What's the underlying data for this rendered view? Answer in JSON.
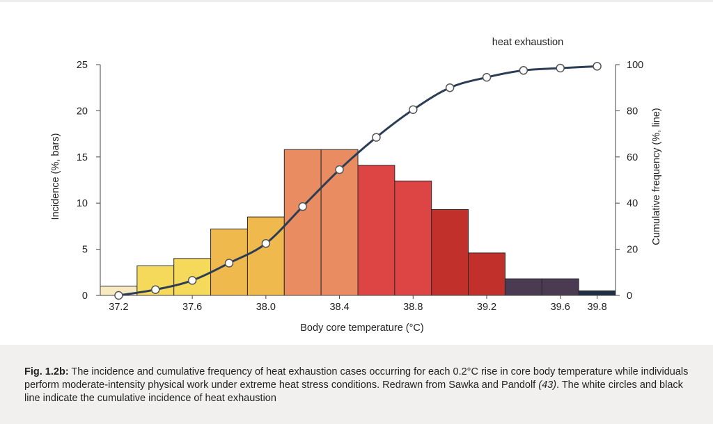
{
  "annotation": "heat exhaustion",
  "caption": {
    "fig_label": "Fig. 1.2b:",
    "text_1": " The incidence and cumulative frequency of heat exhaustion cases occurring for each 0.2°C rise in core body temperature while individuals perform moderate-intensity physical work under extreme heat stress conditions. Redrawn from Sawka and Pandolf ",
    "ref": "(43)",
    "text_2": ". The white circles and black line indicate the cumulative incidence of heat exhaustion"
  },
  "chart_data": {
    "type": "bar",
    "title": "",
    "xlabel": "Body core temperature (°C)",
    "ylabel": "Incidence (%, bars)",
    "y2label": "Cumulative frequency (%, line)",
    "xlim": [
      37.1,
      39.9
    ],
    "ylim": [
      0,
      25
    ],
    "y2lim": [
      0,
      100
    ],
    "x_ticks": [
      37.2,
      37.6,
      38.0,
      38.4,
      38.8,
      39.2,
      39.6,
      39.8
    ],
    "x_tick_labels": [
      "37.2",
      "37.6",
      "38.0",
      "38.4",
      "38.8",
      "39.2",
      "39.6",
      "39.8"
    ],
    "y_ticks": [
      0,
      5,
      10,
      15,
      20,
      25
    ],
    "y2_ticks": [
      0,
      20,
      40,
      60,
      80,
      100
    ],
    "grid": false,
    "series": [
      {
        "type": "bar",
        "x": [
          37.2,
          37.4,
          37.6,
          37.8,
          38.0,
          38.2,
          38.4,
          38.6,
          38.8,
          39.0,
          39.2,
          39.4,
          39.6,
          39.8
        ],
        "values": [
          1.0,
          3.2,
          4.0,
          7.2,
          8.5,
          15.8,
          15.8,
          14.1,
          12.4,
          9.3,
          4.6,
          1.8,
          1.8,
          0.5
        ],
        "colors": [
          "#f7e9c0",
          "#f5d95a",
          "#f5d95a",
          "#f0b94e",
          "#f0b94e",
          "#ea8c62",
          "#ea8c62",
          "#dd4545",
          "#dd4545",
          "#c1302a",
          "#c1302a",
          "#4a3a52",
          "#4a3a52",
          "#1e2e44"
        ]
      },
      {
        "type": "line",
        "axis": "right",
        "x": [
          37.2,
          37.4,
          37.6,
          37.8,
          38.0,
          38.2,
          38.4,
          38.6,
          38.8,
          39.0,
          39.2,
          39.4,
          39.6,
          39.8
        ],
        "values": [
          0,
          2.5,
          6.5,
          14,
          22.5,
          38.5,
          54.5,
          68.5,
          80.5,
          90,
          94.5,
          97.5,
          98.5,
          99.3
        ],
        "color": "#2c3e55"
      }
    ]
  }
}
